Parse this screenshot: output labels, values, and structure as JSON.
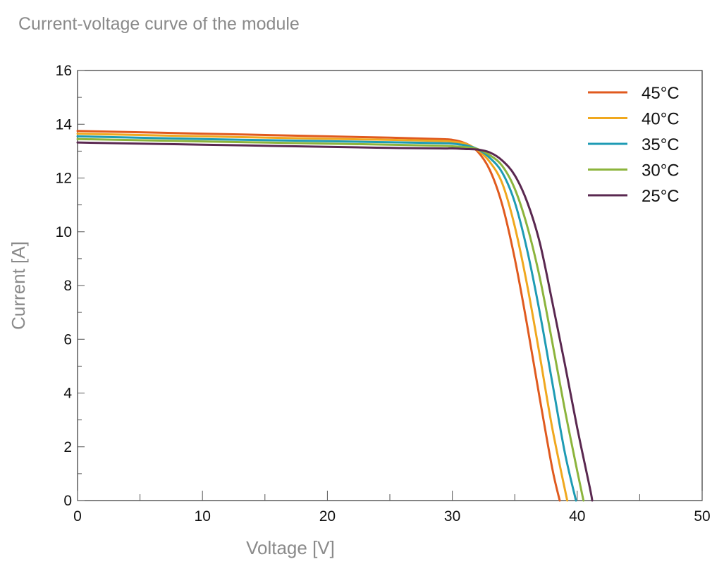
{
  "chart_data": {
    "type": "line",
    "title": "Current-voltage curve of the module",
    "xlabel": "Voltage [V]",
    "ylabel": "Current [A]",
    "xlim": [
      0,
      50
    ],
    "ylim": [
      0,
      16
    ],
    "xticks": [
      0,
      10,
      20,
      30,
      40,
      50
    ],
    "yticks": [
      0,
      2,
      4,
      6,
      8,
      10,
      12,
      14,
      16
    ],
    "x_minor_step": 5,
    "y_minor_step": 1,
    "grid": false,
    "legend_position": "top-right",
    "series": [
      {
        "name": "45°C",
        "color": "#e05a1e",
        "x": [
          0,
          10,
          20,
          25,
          29,
          30,
          31,
          32,
          33,
          34,
          35,
          36,
          37,
          38,
          38.6
        ],
        "y": [
          13.75,
          13.65,
          13.55,
          13.5,
          13.45,
          13.42,
          13.3,
          13.0,
          12.3,
          11.0,
          9.0,
          6.5,
          3.8,
          1.2,
          0
        ]
      },
      {
        "name": "40°C",
        "color": "#f0a81e",
        "x": [
          0,
          10,
          20,
          25,
          29,
          30,
          31,
          32,
          33,
          34,
          35,
          36,
          37,
          38,
          39.2
        ],
        "y": [
          13.65,
          13.55,
          13.46,
          13.42,
          13.38,
          13.35,
          13.28,
          13.05,
          12.6,
          11.8,
          10.2,
          8.0,
          5.4,
          2.7,
          0
        ]
      },
      {
        "name": "35°C",
        "color": "#1e9bb4",
        "x": [
          0,
          10,
          20,
          25,
          29,
          30,
          31,
          32,
          33,
          34,
          35,
          36,
          37,
          38,
          39,
          39.9
        ],
        "y": [
          13.55,
          13.45,
          13.37,
          13.33,
          13.3,
          13.28,
          13.22,
          13.08,
          12.75,
          12.2,
          11.1,
          9.3,
          7.0,
          4.4,
          1.8,
          0
        ]
      },
      {
        "name": "30°C",
        "color": "#8cb43c",
        "x": [
          0,
          10,
          20,
          25,
          29,
          30,
          31,
          32,
          33,
          34,
          35,
          36,
          37,
          38,
          39,
          40,
          40.5
        ],
        "y": [
          13.45,
          13.36,
          13.28,
          13.24,
          13.2,
          13.18,
          13.15,
          13.08,
          12.85,
          12.45,
          11.6,
          10.2,
          8.3,
          5.9,
          3.4,
          1.1,
          0
        ]
      },
      {
        "name": "25°C",
        "color": "#5a2850",
        "x": [
          0,
          10,
          20,
          25,
          29,
          30,
          31,
          32,
          33,
          34,
          35,
          36,
          37,
          38,
          39,
          40,
          41,
          41.2
        ],
        "y": [
          13.32,
          13.24,
          13.16,
          13.12,
          13.1,
          13.1,
          13.08,
          13.06,
          12.95,
          12.65,
          12.1,
          11.1,
          9.6,
          7.4,
          5.1,
          2.7,
          0.5,
          0
        ]
      }
    ]
  }
}
